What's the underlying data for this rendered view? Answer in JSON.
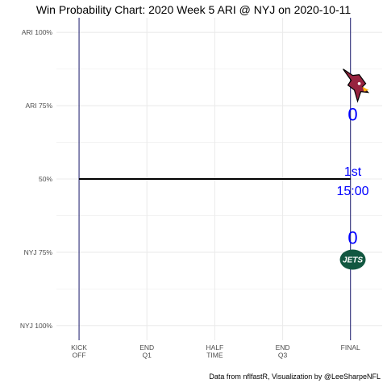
{
  "chart_data": {
    "type": "line",
    "title": "Win Probability Chart: 2020 Week 5 ARI @ NYJ on 2020-10-11",
    "caption": "Data from nflfastR, Visualization by @LeeSharpeNFL",
    "xlabel": "",
    "ylabel": "",
    "x_ticks": [
      {
        "value": 0,
        "label": [
          "KICK",
          "OFF"
        ]
      },
      {
        "value": 15,
        "label": [
          "END",
          "Q1"
        ]
      },
      {
        "value": 30,
        "label": [
          "HALF",
          "TIME"
        ]
      },
      {
        "value": 45,
        "label": [
          "END",
          "Q3"
        ]
      },
      {
        "value": 60,
        "label": [
          "FINAL"
        ]
      }
    ],
    "xlim": [
      -5,
      67
    ],
    "y_ticks": [
      {
        "value": 1.0,
        "label": "ARI 100%"
      },
      {
        "value": 0.75,
        "label": "ARI 75%"
      },
      {
        "value": 0.5,
        "label": "50%"
      },
      {
        "value": 0.25,
        "label": "NYJ 75%"
      },
      {
        "value": 0.0,
        "label": "NYJ 100%"
      }
    ],
    "ylim": [
      -0.05,
      1.05
    ],
    "grid": true,
    "vlines": [
      0,
      60
    ],
    "series": [
      {
        "x": [
          0,
          60
        ],
        "y": [
          0.5,
          0.5
        ],
        "color": "#000000"
      }
    ],
    "annotations": {
      "away_score": "0",
      "home_score": "0",
      "quarter": "1st",
      "clock": "15:00",
      "text_color": "#0000ff"
    },
    "logos": [
      {
        "team": "ARI",
        "icon": "arizona-cardinals-logo"
      },
      {
        "team": "NYJ",
        "icon": "new-york-jets-logo",
        "text": "JETS"
      }
    ],
    "colors": {
      "vline": "#1a1a6e",
      "grid": "#ebebeb",
      "axis_text": "#4d4d4d",
      "cardinals_red": "#97233f",
      "jets_green": "#125740"
    }
  }
}
